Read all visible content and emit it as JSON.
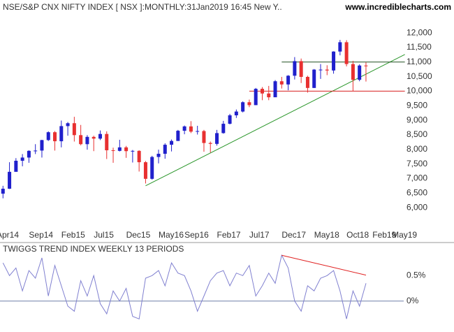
{
  "chart_data": [
    {
      "type": "candlestick",
      "title": "NSE/S&P CNX NIFTY INDEX [ NSX ]:MONTHLY:31Jan2019 16:45 New Y..",
      "source": "www.incrediblecharts.com",
      "up_color": "#2020cc",
      "down_color": "#e83030",
      "x": [
        "2014-05",
        "2014-06",
        "2014-07",
        "2014-08",
        "2014-09",
        "2014-10",
        "2014-11",
        "2014-12",
        "2015-01",
        "2015-02",
        "2015-03",
        "2015-04",
        "2015-05",
        "2015-06",
        "2015-07",
        "2015-08",
        "2015-09",
        "2015-10",
        "2015-11",
        "2015-12",
        "2016-01",
        "2016-02",
        "2016-03",
        "2016-04",
        "2016-05",
        "2016-06",
        "2016-07",
        "2016-08",
        "2016-09",
        "2016-10",
        "2016-11",
        "2016-12",
        "2017-01",
        "2017-02",
        "2017-03",
        "2017-04",
        "2017-05",
        "2017-06",
        "2017-07",
        "2017-08",
        "2017-09",
        "2017-10",
        "2017-11",
        "2017-12",
        "2018-01",
        "2018-02",
        "2018-03",
        "2018-04",
        "2018-05",
        "2018-06",
        "2018-07",
        "2018-08",
        "2018-09",
        "2018-10",
        "2018-11",
        "2018-12",
        "2019-01"
      ],
      "open": [
        6480,
        6650,
        7230,
        7610,
        7720,
        7950,
        7960,
        8320,
        8590,
        8280,
        8800,
        8900,
        8490,
        8180,
        8430,
        8370,
        8530,
        7970,
        7950,
        8070,
        7940,
        7950,
        7560,
        6990,
        7740,
        7850,
        8160,
        8290,
        8640,
        8790,
        8610,
        8630,
        8220,
        8190,
        8560,
        8880,
        9170,
        9300,
        9620,
        9520,
        10080,
        9920,
        9790,
        10340,
        10230,
        10530,
        11030,
        10490,
        10110,
        10740,
        10740,
        10710,
        11360,
        11680,
        10930,
        10390,
        10880
      ],
      "high": [
        6750,
        7560,
        7700,
        7840,
        7970,
        8180,
        8330,
        8620,
        8630,
        8990,
        8940,
        9120,
        8840,
        8490,
        8470,
        8650,
        8620,
        8060,
        8330,
        8120,
        7980,
        7970,
        7600,
        7780,
        7990,
        8210,
        8340,
        8670,
        8820,
        8970,
        8810,
        8670,
        8270,
        8670,
        8980,
        9220,
        9370,
        9650,
        9710,
        10110,
        10140,
        10180,
        10380,
        10490,
        10550,
        11170,
        11120,
        10530,
        10760,
        10930,
        10890,
        11370,
        11760,
        11750,
        11040,
        10920,
        10990
      ],
      "low": [
        6320,
        6640,
        7240,
        7420,
        7540,
        7840,
        7720,
        8290,
        7960,
        8070,
        8470,
        8270,
        8140,
        7990,
        7940,
        8320,
        7670,
        7540,
        7930,
        7710,
        7550,
        7240,
        6830,
        6960,
        7520,
        7680,
        7930,
        8290,
        8520,
        8560,
        8510,
        7920,
        7890,
        8130,
        8540,
        8860,
        9080,
        9270,
        9450,
        9520,
        9690,
        9690,
        9830,
        10090,
        10030,
        10400,
        10280,
        9950,
        10110,
        10420,
        10550,
        10600,
        11230,
        10850,
        10000,
        10340,
        10330
      ],
      "close": [
        6650,
        7230,
        7610,
        7720,
        7950,
        7960,
        8320,
        8590,
        8280,
        8800,
        8900,
        8490,
        8180,
        8430,
        8370,
        8530,
        7970,
        7950,
        8070,
        7940,
        7950,
        7560,
        6990,
        7740,
        7850,
        8160,
        8290,
        8640,
        8790,
        8610,
        8630,
        8220,
        8190,
        8560,
        8880,
        9170,
        9300,
        9620,
        9520,
        10080,
        9920,
        9790,
        10340,
        10230,
        10530,
        11030,
        10490,
        10110,
        10740,
        10740,
        10710,
        11360,
        11680,
        10930,
        10390,
        10880,
        10860
      ],
      "ylim": [
        4850,
        13130
      ],
      "yticks": [
        {
          "value": 6000,
          "label": "6,000"
        },
        {
          "value": 6500,
          "label": "6,500"
        },
        {
          "value": 7000,
          "label": "7,000"
        },
        {
          "value": 7500,
          "label": "7,500"
        },
        {
          "value": 8000,
          "label": "8,000"
        },
        {
          "value": 8500,
          "label": "8,500"
        },
        {
          "value": 9000,
          "label": "9,000"
        },
        {
          "value": 9500,
          "label": "9,500"
        },
        {
          "value": 10000,
          "label": "10,000"
        },
        {
          "value": 10500,
          "label": "10,500"
        },
        {
          "value": 11000,
          "label": "11,000"
        },
        {
          "value": 11500,
          "label": "11,500"
        },
        {
          "value": 12000,
          "label": "12,000"
        }
      ],
      "xticks": [
        {
          "value": "2014-04",
          "label": "Apr14"
        },
        {
          "value": "2014-09",
          "label": "Sep14"
        },
        {
          "value": "2015-02",
          "label": "Feb15"
        },
        {
          "value": "2015-07",
          "label": "Jul15"
        },
        {
          "value": "2015-12",
          "label": "Dec15"
        },
        {
          "value": "2016-05",
          "label": "May16"
        },
        {
          "value": "2016-09",
          "label": "Sep16"
        },
        {
          "value": "2017-02",
          "label": "Feb17"
        },
        {
          "value": "2017-07",
          "label": "Jul17"
        },
        {
          "value": "2017-12",
          "label": "Dec17"
        },
        {
          "value": "2018-05",
          "label": "May18"
        },
        {
          "value": "2018-10",
          "label": "Oct18"
        },
        {
          "value": "2019-02",
          "label": "Feb19"
        },
        {
          "value": "2019-05",
          "label": "May19"
        }
      ],
      "lines": [
        {
          "color": "#2a962a",
          "x": [
            "2016-03",
            "2019-07"
          ],
          "y": [
            6750,
            11260
          ]
        },
        {
          "color": "#d82020",
          "x": [
            "2017-07",
            "2019-07"
          ],
          "y": [
            10000,
            10000
          ]
        },
        {
          "color": "#205020",
          "x": [
            "2017-12",
            "2019-07"
          ],
          "y": [
            11000,
            11000
          ]
        }
      ]
    },
    {
      "type": "line",
      "title": "TWIGGS TREND INDEX WEEKLY 13 PERIODS",
      "color": "#8080d0",
      "zero_line": true,
      "x": [
        "2014-05",
        "2014-06",
        "2014-07",
        "2014-08",
        "2014-09",
        "2014-10",
        "2014-11",
        "2014-12",
        "2015-01",
        "2015-02",
        "2015-03",
        "2015-04",
        "2015-05",
        "2015-06",
        "2015-07",
        "2015-08",
        "2015-09",
        "2015-10",
        "2015-11",
        "2015-12",
        "2016-01",
        "2016-02",
        "2016-03",
        "2016-04",
        "2016-05",
        "2016-06",
        "2016-07",
        "2016-08",
        "2016-09",
        "2016-10",
        "2016-11",
        "2016-12",
        "2017-01",
        "2017-02",
        "2017-03",
        "2017-04",
        "2017-05",
        "2017-06",
        "2017-07",
        "2017-08",
        "2017-09",
        "2017-10",
        "2017-11",
        "2017-12",
        "2018-01",
        "2018-02",
        "2018-03",
        "2018-04",
        "2018-05",
        "2018-06",
        "2018-07",
        "2018-08",
        "2018-09",
        "2018-10",
        "2018-11",
        "2018-12",
        "2019-01"
      ],
      "values": [
        0.75,
        0.5,
        0.65,
        0.2,
        0.6,
        0.45,
        0.85,
        0.1,
        0.7,
        0.3,
        -0.1,
        -0.2,
        0.4,
        0.1,
        0.5,
        -0.05,
        -0.25,
        0.2,
        0.0,
        0.25,
        -0.3,
        -0.35,
        0.45,
        0.5,
        0.6,
        0.3,
        0.75,
        0.55,
        0.5,
        0.2,
        -0.2,
        0.1,
        0.4,
        0.55,
        0.6,
        0.3,
        0.55,
        0.5,
        0.7,
        0.1,
        0.3,
        0.55,
        0.35,
        0.9,
        0.65,
        0.0,
        -0.2,
        0.3,
        0.2,
        0.45,
        0.5,
        0.6,
        0.2,
        -0.35,
        0.2,
        -0.1,
        0.35
      ],
      "ylim": [
        -0.47,
        1.15
      ],
      "yticks": [
        {
          "value": 0,
          "label": "0%"
        },
        {
          "value": 0.5,
          "label": "0.5%"
        }
      ],
      "lines": [
        {
          "color": "#e02020",
          "x": [
            "2017-12",
            "2019-01"
          ],
          "y": [
            0.9,
            0.51
          ]
        }
      ]
    }
  ]
}
